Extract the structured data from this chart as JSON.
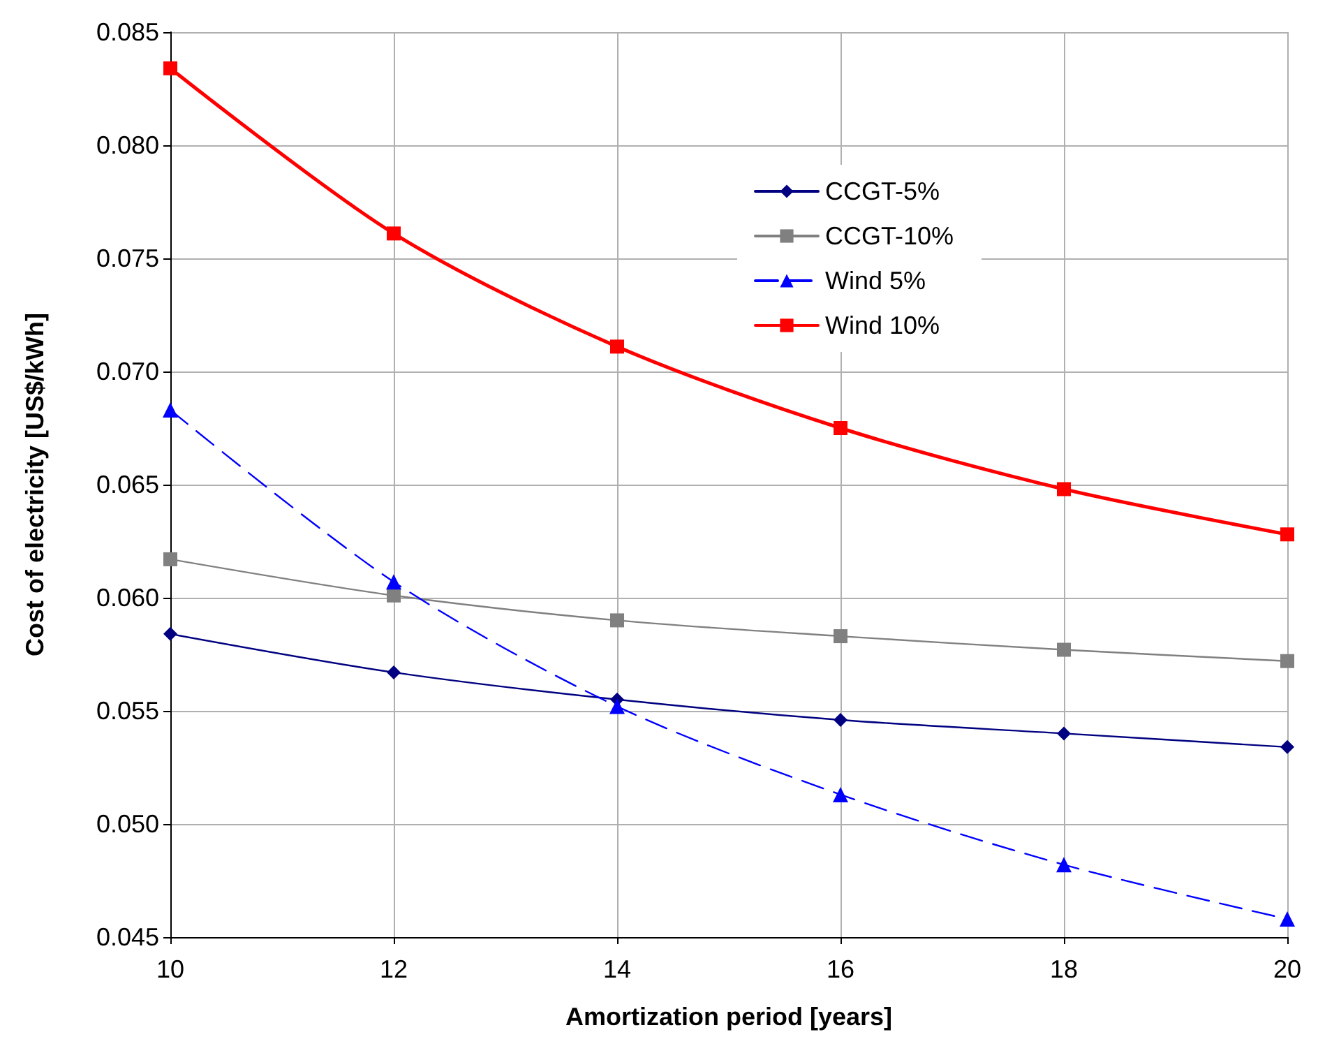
{
  "chart_data": {
    "type": "line",
    "xlabel": "Amortization period [years]",
    "ylabel": "Cost of electricity [US$/kWh]",
    "x": [
      10,
      12,
      14,
      16,
      18,
      20
    ],
    "xlim": [
      10,
      20
    ],
    "xticks": [
      10,
      12,
      14,
      16,
      18,
      20
    ],
    "ylim": [
      0.045,
      0.085
    ],
    "yticks": [
      {
        "value": 0.045,
        "label": "0.045"
      },
      {
        "value": 0.05,
        "label": "0.050"
      },
      {
        "value": 0.055,
        "label": "0.055"
      },
      {
        "value": 0.06,
        "label": "0.060"
      },
      {
        "value": 0.065,
        "label": "0.065"
      },
      {
        "value": 0.07,
        "label": "0.070"
      },
      {
        "value": 0.075,
        "label": "0.075"
      },
      {
        "value": 0.08,
        "label": "0.080"
      },
      {
        "value": 0.085,
        "label": "0.085"
      }
    ],
    "grid": true,
    "legend": "top right",
    "series": [
      {
        "name": "CCGT-5%",
        "color": "#000080",
        "marker": "diamond",
        "line_style": "solid",
        "values": [
          0.0584,
          0.0567,
          0.0555,
          0.0546,
          0.054,
          0.0534
        ]
      },
      {
        "name": "CCGT-10%",
        "color": "#808080",
        "marker": "square",
        "line_style": "solid",
        "values": [
          0.0617,
          0.0601,
          0.059,
          0.0583,
          0.0577,
          0.0572
        ]
      },
      {
        "name": "Wind 5%",
        "color": "#0000ff",
        "marker": "triangle",
        "line_style": "dashed",
        "values": [
          0.0683,
          0.0607,
          0.0552,
          0.0513,
          0.0482,
          0.0458
        ]
      },
      {
        "name": "Wind 10%",
        "color": "#ff0000",
        "marker": "square",
        "line_style": "solid",
        "values": [
          0.0834,
          0.0761,
          0.0711,
          0.0675,
          0.0648,
          0.0628
        ]
      }
    ]
  }
}
